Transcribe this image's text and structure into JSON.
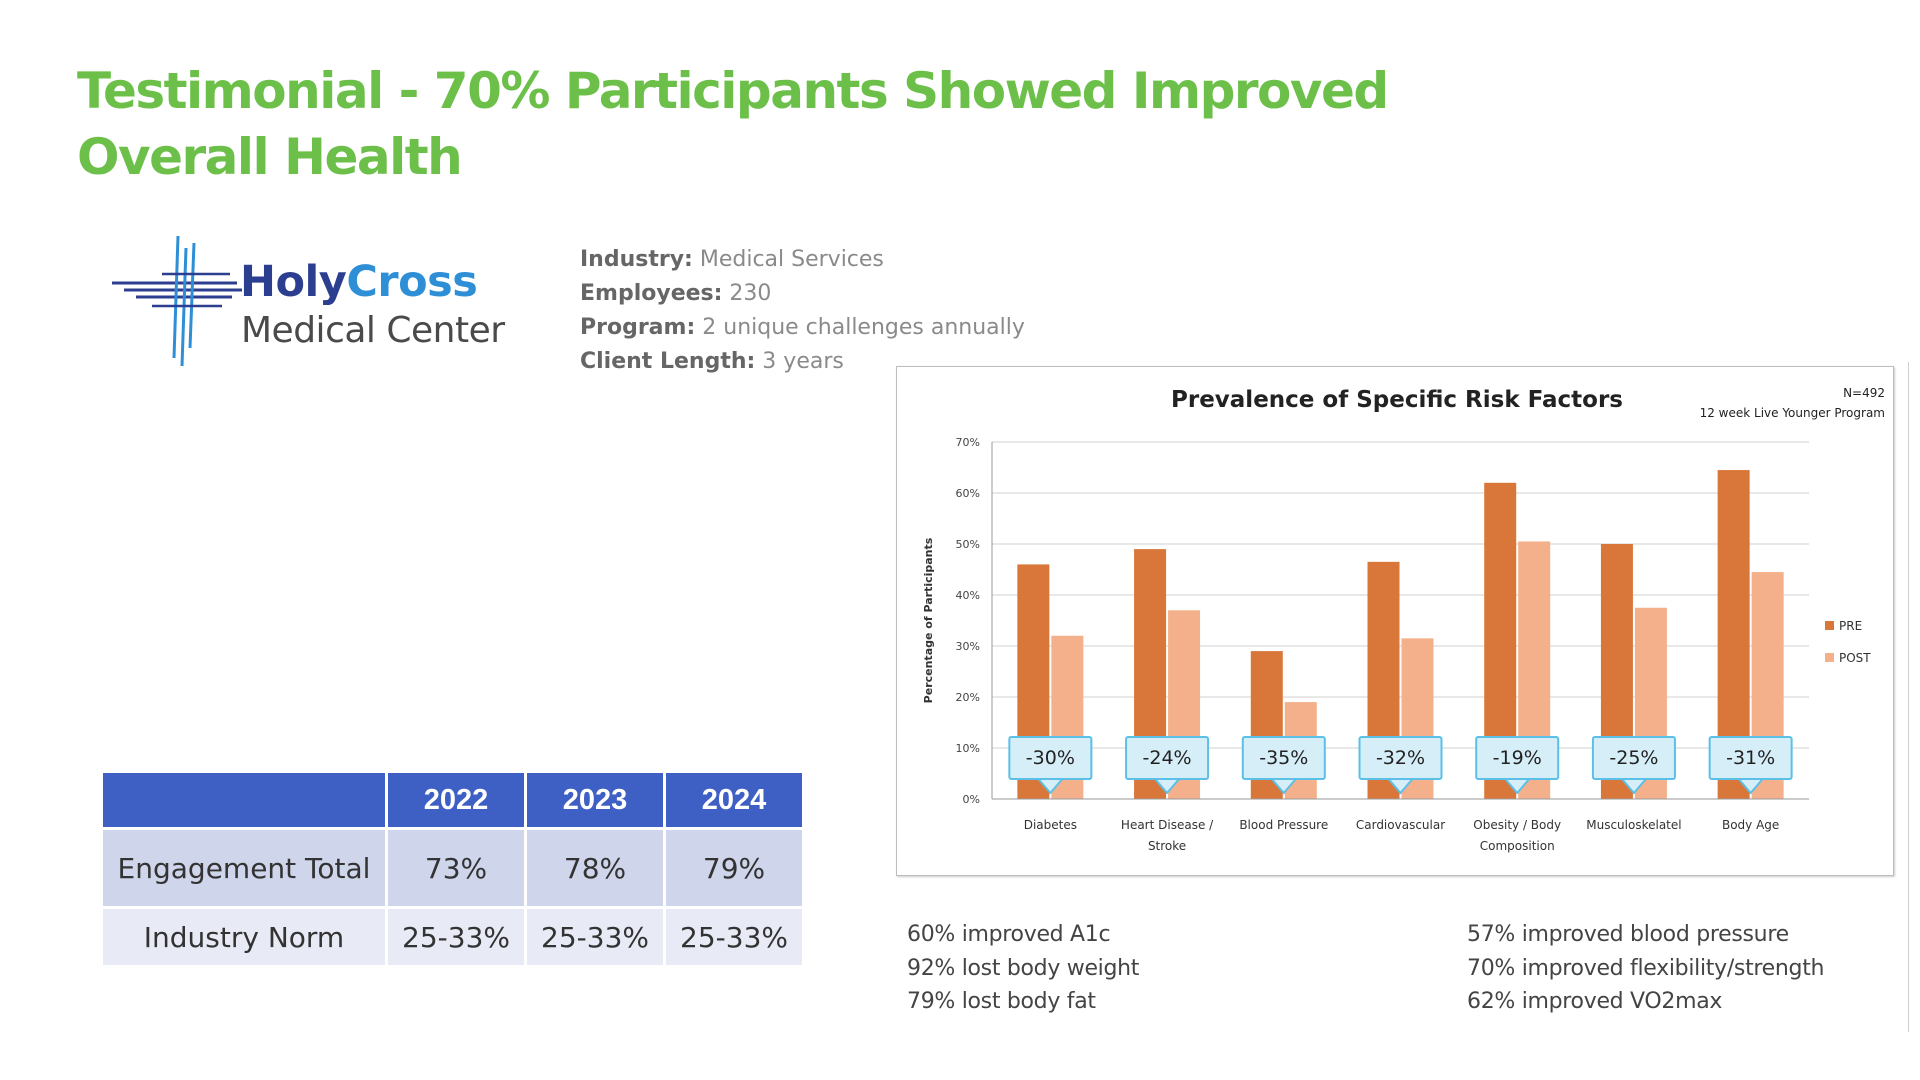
{
  "title": "Testimonial - 70% Participants Showed Improved Overall Health",
  "logo": {
    "word1": "Holy",
    "word2": "Cross",
    "line2": "Medical Center"
  },
  "client_info": [
    {
      "label": "Industry:",
      "value": " Medical Services"
    },
    {
      "label": "Employees:",
      "value": " 230"
    },
    {
      "label": "Program:",
      "value": " 2 unique challenges annually"
    },
    {
      "label": "Client Length:",
      "value": " 3 years"
    }
  ],
  "engagement_table": {
    "headers": [
      "",
      "2022",
      "2023",
      "2024"
    ],
    "rows": [
      {
        "label": "Engagement Total",
        "values": [
          "73%",
          "78%",
          "79%"
        ]
      },
      {
        "label": "Industry Norm",
        "values": [
          "25-33%",
          "25-33%",
          "25-33%"
        ]
      }
    ]
  },
  "chart_data": {
    "type": "bar",
    "title": "Prevalence of Specific Risk Factors",
    "subtitle_lines": [
      "N=492",
      "12 week Live Younger Program"
    ],
    "ylabel": "Percentage of Participants",
    "xlabel": "",
    "ylim": [
      0,
      70
    ],
    "ytick_labels": [
      "0%",
      "10%",
      "20%",
      "30%",
      "40%",
      "50%",
      "60%",
      "70%"
    ],
    "ytick_values": [
      0,
      10,
      20,
      30,
      40,
      50,
      60,
      70
    ],
    "categories": [
      [
        "Diabetes"
      ],
      [
        "Heart Disease /",
        "Stroke"
      ],
      [
        "Blood Pressure"
      ],
      [
        "Cardiovascular"
      ],
      [
        "Obesity / Body",
        "Composition"
      ],
      [
        "Musculoskelatel"
      ],
      [
        "Body Age"
      ]
    ],
    "series": [
      {
        "name": "PRE",
        "color": "#d9773a",
        "values": [
          46,
          49,
          29,
          46.5,
          62,
          50,
          64.5
        ]
      },
      {
        "name": "POST",
        "color": "#f4b08a",
        "values": [
          32,
          37,
          19,
          31.5,
          50.5,
          37.5,
          44.5
        ]
      }
    ],
    "callouts": [
      "-30%",
      "-24%",
      "-35%",
      "-32%",
      "-19%",
      "-25%",
      "-31%"
    ],
    "legend": "right"
  },
  "notes_left": [
    "60% improved A1c",
    "92% lost body weight",
    "79% lost body fat"
  ],
  "notes_right": [
    "57% improved blood pressure",
    "70% improved flexibility/strength",
    "62% improved VO2max"
  ],
  "colors": {
    "title": "#6cc04a",
    "table_header": "#3e5fc4",
    "callout_fill": "#d6eef8",
    "callout_border": "#5bc0e8"
  }
}
